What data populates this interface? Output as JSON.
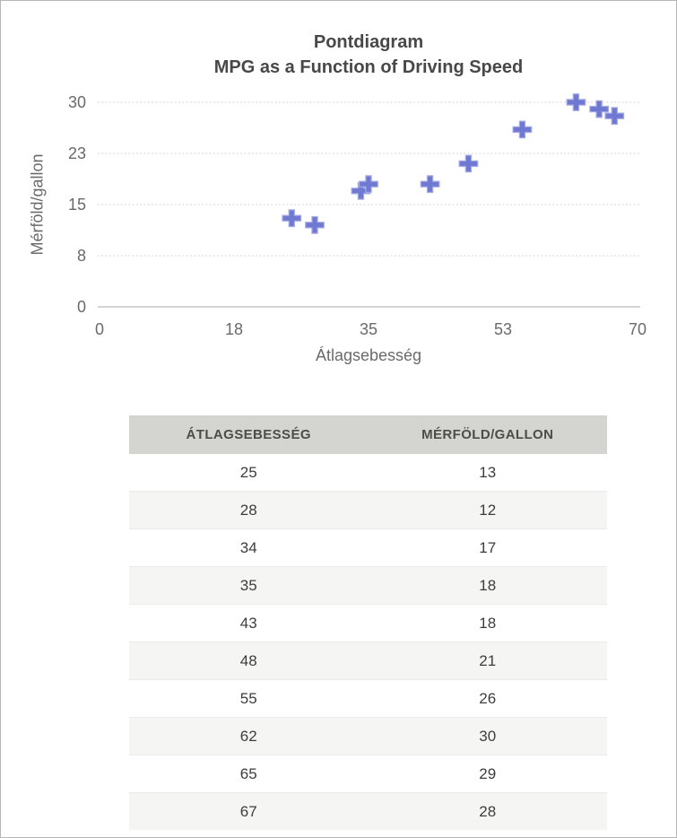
{
  "chart_data": {
    "type": "scatter",
    "title": "Pontdiagram",
    "subtitle": "MPG as a Function of Driving Speed",
    "xlabel": "Átlagsebesség",
    "ylabel": "Mérföld/gallon",
    "points": [
      [
        25,
        13
      ],
      [
        28,
        12
      ],
      [
        34,
        17
      ],
      [
        35,
        18
      ],
      [
        43,
        18
      ],
      [
        48,
        21
      ],
      [
        55,
        26
      ],
      [
        62,
        30
      ],
      [
        65,
        29
      ],
      [
        67,
        28
      ]
    ],
    "xlim": [
      0,
      70
    ],
    "ylim": [
      0,
      30
    ],
    "xtick_labels": [
      "0",
      "18",
      "35",
      "53",
      "70"
    ],
    "ytick_labels": [
      "0",
      "8",
      "15",
      "23",
      "30"
    ],
    "grid": "horizontal dotted gridlines, solid baseline at 0",
    "legend": "none",
    "marker": "plus"
  },
  "table": {
    "columns": [
      "ÁTLAGSEBESSÉG",
      "MÉRFÖLD/GALLON"
    ],
    "rows": [
      [
        "25",
        "13"
      ],
      [
        "28",
        "12"
      ],
      [
        "34",
        "17"
      ],
      [
        "35",
        "18"
      ],
      [
        "43",
        "18"
      ],
      [
        "48",
        "21"
      ],
      [
        "55",
        "26"
      ],
      [
        "62",
        "30"
      ],
      [
        "65",
        "29"
      ],
      [
        "67",
        "28"
      ]
    ]
  },
  "colors": {
    "marker": "#6f79d2",
    "marker_outline": "#a6abe4",
    "gridline": "#cccccc",
    "axis_line": "#c6c6c6",
    "title_text": "#484848",
    "axis_text": "#6a6a6a",
    "table_header_bg": "#d4d4d0",
    "table_header_text": "#4d4d48",
    "row_alt_bg": "#f5f5f3",
    "row_border": "#ebebe9",
    "cell_text": "#3d3d3d",
    "frame_border": "#b6b6b6"
  }
}
